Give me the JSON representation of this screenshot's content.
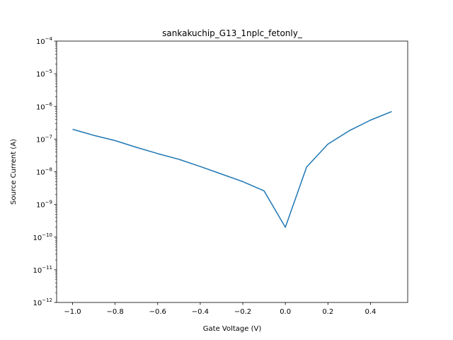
{
  "chart_data": {
    "type": "line",
    "title": "sankakuchip_G13_1nplc_fetonly_",
    "xlabel": "Gate Voltage (V)",
    "ylabel": "Source Current (A)",
    "xlim": [
      -1.075,
      0.575
    ],
    "ylim": [
      1e-12,
      0.0001
    ],
    "yscale": "log",
    "grid": false,
    "x_ticks": [
      -1.0,
      -0.8,
      -0.6,
      -0.4,
      -0.2,
      0.0,
      0.2,
      0.4
    ],
    "x_tick_labels": [
      "−1.0",
      "−0.8",
      "−0.6",
      "−0.4",
      "−0.2",
      "0.0",
      "0.2",
      "0.4"
    ],
    "y_tick_exponents": [
      -12,
      -11,
      -10,
      -9,
      -8,
      -7,
      -6,
      -5,
      -4
    ],
    "series": [
      {
        "color": "#1f77b4",
        "x": [
          -1.0,
          -0.9,
          -0.8,
          -0.7,
          -0.6,
          -0.5,
          -0.4,
          -0.3,
          -0.2,
          -0.1,
          0.0,
          0.1,
          0.2,
          0.3,
          0.4,
          0.5
        ],
        "y": [
          2e-07,
          1.3e-07,
          9e-08,
          5.6e-08,
          3.6e-08,
          2.4e-08,
          1.45e-08,
          8.5e-09,
          5e-09,
          2.6e-09,
          2e-10,
          1.4e-08,
          7e-08,
          1.8e-07,
          3.8e-07,
          7e-07
        ]
      }
    ]
  }
}
